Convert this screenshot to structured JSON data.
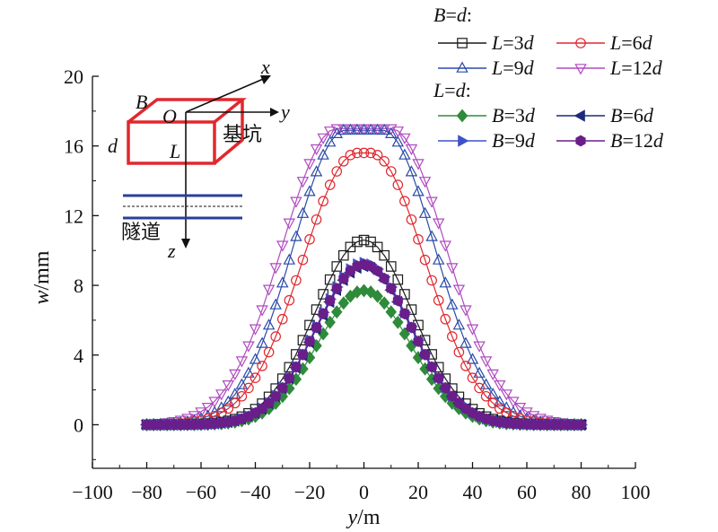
{
  "chart_data": {
    "type": "scatter",
    "xlabel": "y/m",
    "ylabel": "w/mm",
    "xlim": [
      -100,
      100
    ],
    "ylim": [
      -2.5,
      20
    ],
    "x_ticks": [
      -100,
      -80,
      -60,
      -40,
      -20,
      0,
      20,
      40,
      60,
      80,
      100
    ],
    "y_ticks": [
      0,
      4,
      8,
      12,
      16,
      20
    ],
    "x_step": 2.5,
    "x_range": [
      -80,
      80
    ],
    "legend_groups": [
      {
        "header": "B=d:",
        "header_parts": [
          "B",
          "=",
          "d",
          ":"
        ]
      },
      {
        "header": "L=d:",
        "header_parts": [
          "L",
          "=",
          "d",
          ":"
        ]
      }
    ],
    "series": [
      {
        "name": "L=3d",
        "group": 0,
        "name_parts": [
          "L",
          "=3",
          "d"
        ],
        "marker": "open-square",
        "color": "#1a1a1a",
        "peak": 10.6,
        "plateau": 0,
        "sigma": 18
      },
      {
        "name": "L=6d",
        "group": 0,
        "name_parts": [
          "L",
          "=6",
          "d"
        ],
        "marker": "open-circle",
        "color": "#e0282e",
        "peak": 15.6,
        "plateau": 5,
        "sigma": 20
      },
      {
        "name": "L=9d",
        "group": 0,
        "name_parts": [
          "L",
          "=9",
          "d"
        ],
        "marker": "open-triangle-up",
        "color": "#2a4aa8",
        "peak": 16.9,
        "plateau": 14,
        "sigma": 19
      },
      {
        "name": "L=12d",
        "group": 0,
        "name_parts": [
          "L",
          "=12",
          "d"
        ],
        "marker": "open-triangle-down",
        "color": "#b04ac0",
        "peak": 17.0,
        "plateau": 20,
        "sigma": 20
      },
      {
        "name": "B=3d",
        "group": 1,
        "name_parts": [
          "B",
          "=3",
          "d"
        ],
        "marker": "filled-diamond",
        "color": "#2e8b3a",
        "peak": 7.7,
        "plateau": 0,
        "sigma": 17
      },
      {
        "name": "B=6d",
        "group": 1,
        "name_parts": [
          "B",
          "=6",
          "d"
        ],
        "marker": "filled-triangle-left",
        "color": "#1c2a78",
        "peak": 9.1,
        "plateau": 0,
        "sigma": 17.5
      },
      {
        "name": "B=9d",
        "group": 1,
        "name_parts": [
          "B",
          "=9",
          "d"
        ],
        "marker": "filled-triangle-right",
        "color": "#3d52c8",
        "peak": 9.3,
        "plateau": 0,
        "sigma": 17.5
      },
      {
        "name": "B=12d",
        "group": 1,
        "name_parts": [
          "B",
          "=12",
          "d"
        ],
        "marker": "filled-hexagon",
        "color": "#6a1e8a",
        "peak": 9.2,
        "plateau": 0,
        "sigma": 17.5
      }
    ],
    "inset": {
      "labels": {
        "x": "x",
        "y": "y",
        "z": "z",
        "o": "O",
        "b": "B",
        "l": "L",
        "d": "d"
      },
      "pit_label": "基坑",
      "tunnel_label": "隧道"
    }
  }
}
